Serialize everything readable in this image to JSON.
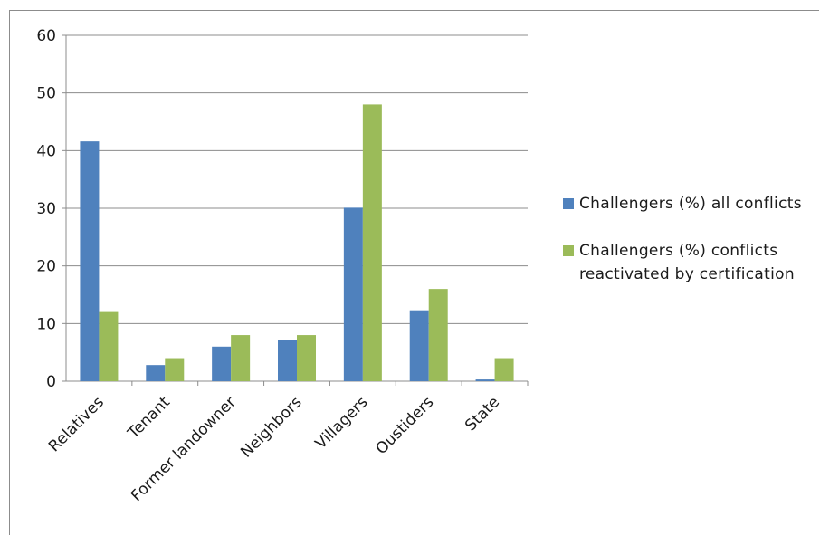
{
  "chart_data": {
    "type": "bar",
    "title": "",
    "xlabel": "",
    "ylabel": "",
    "ylim": [
      0,
      60
    ],
    "yticks": [
      0,
      10,
      20,
      30,
      40,
      50,
      60
    ],
    "grid": true,
    "legend_position": "right",
    "categories": [
      "Relatives",
      "Tenant",
      "Former landowner",
      "Neighbors",
      "Villagers",
      "Oustiders",
      "State"
    ],
    "series": [
      {
        "name": "Challengers (%) all conflicts",
        "color": "#4f81bd",
        "values": [
          41.6,
          2.8,
          6.0,
          7.1,
          30.1,
          12.3,
          0.3
        ]
      },
      {
        "name": "Challengers (%) conflicts reactivated by certification",
        "color": "#9bbb59",
        "values": [
          12,
          4,
          8,
          8,
          48,
          16,
          4
        ]
      }
    ]
  }
}
